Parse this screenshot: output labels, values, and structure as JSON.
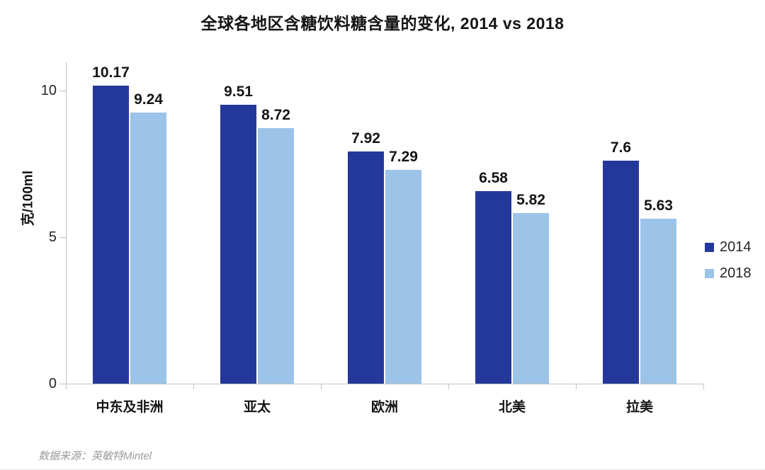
{
  "title": "全球各地区含糖饮料糖含量的变化, 2014 vs 2018",
  "source": "数据来源：英敏特Mintel",
  "chart_data": {
    "type": "bar",
    "title": "全球各地区含糖饮料糖含量的变化, 2014 vs 2018",
    "categories": [
      "中东及非洲",
      "亚太",
      "欧洲",
      "北美",
      "拉美"
    ],
    "series": [
      {
        "name": "2014",
        "color": "#24389B",
        "values": [
          10.17,
          9.51,
          7.92,
          6.58,
          7.6
        ]
      },
      {
        "name": "2018",
        "color": "#9CC3E8",
        "values": [
          9.24,
          8.72,
          7.29,
          5.82,
          5.63
        ]
      }
    ],
    "xlabel": "",
    "ylabel": "克/100ml",
    "yticks": [
      0,
      5,
      10
    ],
    "ylim": [
      0,
      10.85
    ],
    "grid": false,
    "legend_position": "right",
    "axis_color": "#c2c2c2"
  }
}
